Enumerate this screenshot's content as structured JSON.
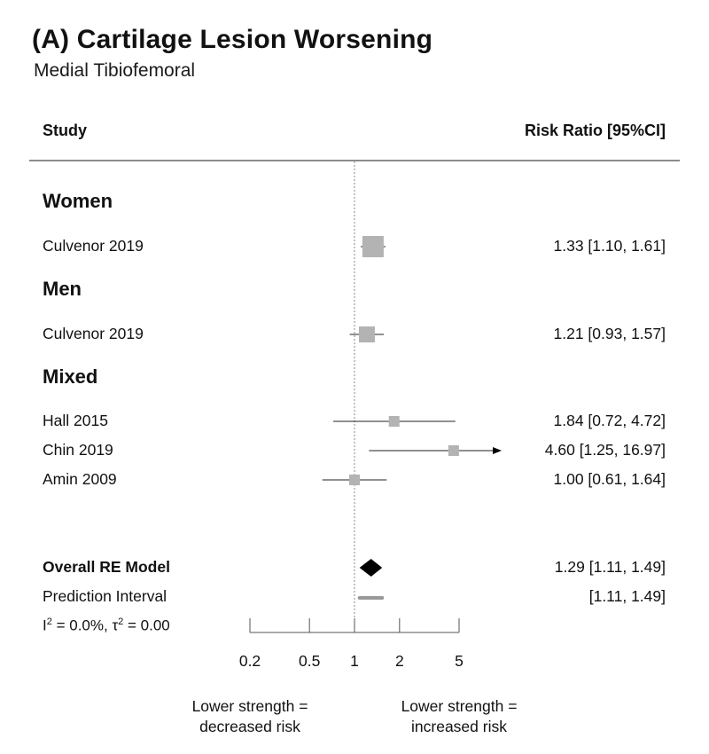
{
  "header": {
    "title": "(A) Cartilage Lesion Worsening",
    "subtitle": "Medial Tibiofemoral",
    "col_study": "Study",
    "col_rr": "Risk Ratio [95%CI]"
  },
  "stats": {
    "i2_prefix": "I",
    "i2_value": " = 0.0%, ",
    "tau2_prefix": "τ",
    "tau2_value": " = 0.00"
  },
  "footnotes": {
    "left_line1": "Lower strength =",
    "left_line2": "decreased risk",
    "right_line1": "Lower strength =",
    "right_line2": "increased risk"
  },
  "chart_data": {
    "type": "forest",
    "x_scale": "log",
    "x_ticks": [
      0.2,
      0.5,
      1,
      2,
      5
    ],
    "x_tick_labels": [
      "0.2",
      "0.5",
      "1",
      "2",
      "5"
    ],
    "reference_line": 1,
    "groups": [
      {
        "name": "Women",
        "studies": [
          {
            "study": "Culvenor 2019",
            "rr": 1.33,
            "lo": 1.1,
            "hi": 1.61,
            "label": "1.33 [1.10,  1.61]",
            "weight": 3
          }
        ]
      },
      {
        "name": "Men",
        "studies": [
          {
            "study": "Culvenor 2019",
            "rr": 1.21,
            "lo": 0.93,
            "hi": 1.57,
            "label": "1.21 [0.93,  1.57]",
            "weight": 2
          }
        ]
      },
      {
        "name": "Mixed",
        "studies": [
          {
            "study": "Hall 2015",
            "rr": 1.84,
            "lo": 0.72,
            "hi": 4.72,
            "label": "1.84 [0.72,  4.72]",
            "weight": 1
          },
          {
            "study": "Chin 2019",
            "rr": 4.6,
            "lo": 1.25,
            "hi": 16.97,
            "label": "4.60 [1.25, 16.97]",
            "weight": 1,
            "arrow": true
          },
          {
            "study": "Amin 2009",
            "rr": 1.0,
            "lo": 0.61,
            "hi": 1.64,
            "label": "1.00 [0.61,  1.64]",
            "weight": 1
          }
        ]
      }
    ],
    "overall": {
      "label": "Overall RE Model",
      "rr": 1.29,
      "lo": 1.11,
      "hi": 1.49,
      "text": "1.29 [1.11, 1.49]"
    },
    "prediction_interval": {
      "label": "Prediction Interval",
      "lo": 1.11,
      "hi": 1.49,
      "text": "[1.11, 1.49]"
    },
    "colors": {
      "box": "#b3b3b3",
      "line": "#222222",
      "diamond": "#000000",
      "pi": "#999999"
    }
  }
}
